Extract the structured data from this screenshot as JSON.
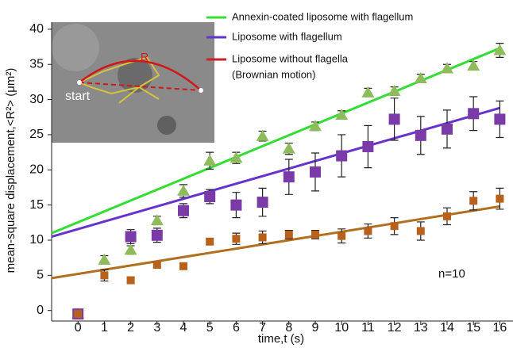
{
  "chart_data": {
    "type": "scatter",
    "xlabel": "time,t (s)",
    "ylabel": "mean-square displacement,<R²> (μm²)",
    "annotation": "n=10",
    "inset": {
      "labels": [
        "R",
        "start"
      ]
    },
    "x": [
      0,
      1,
      2,
      3,
      4,
      5,
      6,
      7,
      8,
      9,
      10,
      11,
      12,
      13,
      14,
      15,
      16
    ],
    "xlim": [
      -1,
      16.5
    ],
    "ylim": [
      -1.5,
      41
    ],
    "xticks": [
      0,
      1,
      2,
      3,
      4,
      5,
      6,
      7,
      8,
      9,
      10,
      11,
      12,
      13,
      14,
      15,
      16
    ],
    "yticks": [
      0,
      5,
      10,
      15,
      20,
      25,
      30,
      35,
      40
    ],
    "fit_x": [
      -1,
      16
    ],
    "series": [
      {
        "name": "Annexin-coated liposome with flagellum",
        "color": "#33dd33",
        "marker_color": "#8fbc5a",
        "marker": "triangle",
        "values": [
          -0.5,
          7.2,
          8.6,
          12.8,
          17,
          21.3,
          21.7,
          24.8,
          23,
          26.2,
          27.8,
          31,
          31.2,
          33,
          34.4,
          34.8,
          37
        ],
        "errors": [
          null,
          0.6,
          0.6,
          0.6,
          0.9,
          1.2,
          0.8,
          0.7,
          0.8,
          0.6,
          0.6,
          0.6,
          0.6,
          0.6,
          0.6,
          0.6,
          1
        ],
        "fit": [
          11,
          37.3
        ]
      },
      {
        "name": "Liposome with flagellum",
        "color": "#6633cc",
        "marker_color": "#7a3aa8",
        "marker": "square",
        "values": [
          -0.5,
          null,
          10.5,
          10.7,
          14.2,
          16.2,
          15,
          15.4,
          19,
          19.7,
          22,
          23.3,
          27.2,
          24.9,
          25.8,
          28,
          27.2
        ],
        "errors": [
          null,
          null,
          1,
          1,
          1,
          1,
          1.8,
          2,
          2.5,
          2.7,
          3,
          3,
          3,
          2.7,
          2.7,
          2.4,
          2.6
        ],
        "fit": [
          10.5,
          28.8
        ]
      },
      {
        "name": "Liposome without flagella",
        "name_note": "(Brownian motion)",
        "color": "#cc2222",
        "line_color": "#b07020",
        "marker_color": "#b8611a",
        "marker": "square",
        "values": [
          -0.5,
          5,
          4.3,
          6.5,
          6.3,
          9.8,
          10.2,
          10.4,
          10.8,
          10.8,
          10.6,
          11.3,
          12,
          11.3,
          13.4,
          15.6,
          15.9
        ],
        "errors": [
          null,
          0.8,
          0.3,
          0.4,
          0.4,
          0.4,
          0.8,
          0.9,
          0.6,
          0.6,
          1,
          1,
          1.2,
          1.3,
          1.2,
          1.3,
          1.5
        ],
        "fit": [
          4.6,
          14.8
        ]
      }
    ]
  }
}
